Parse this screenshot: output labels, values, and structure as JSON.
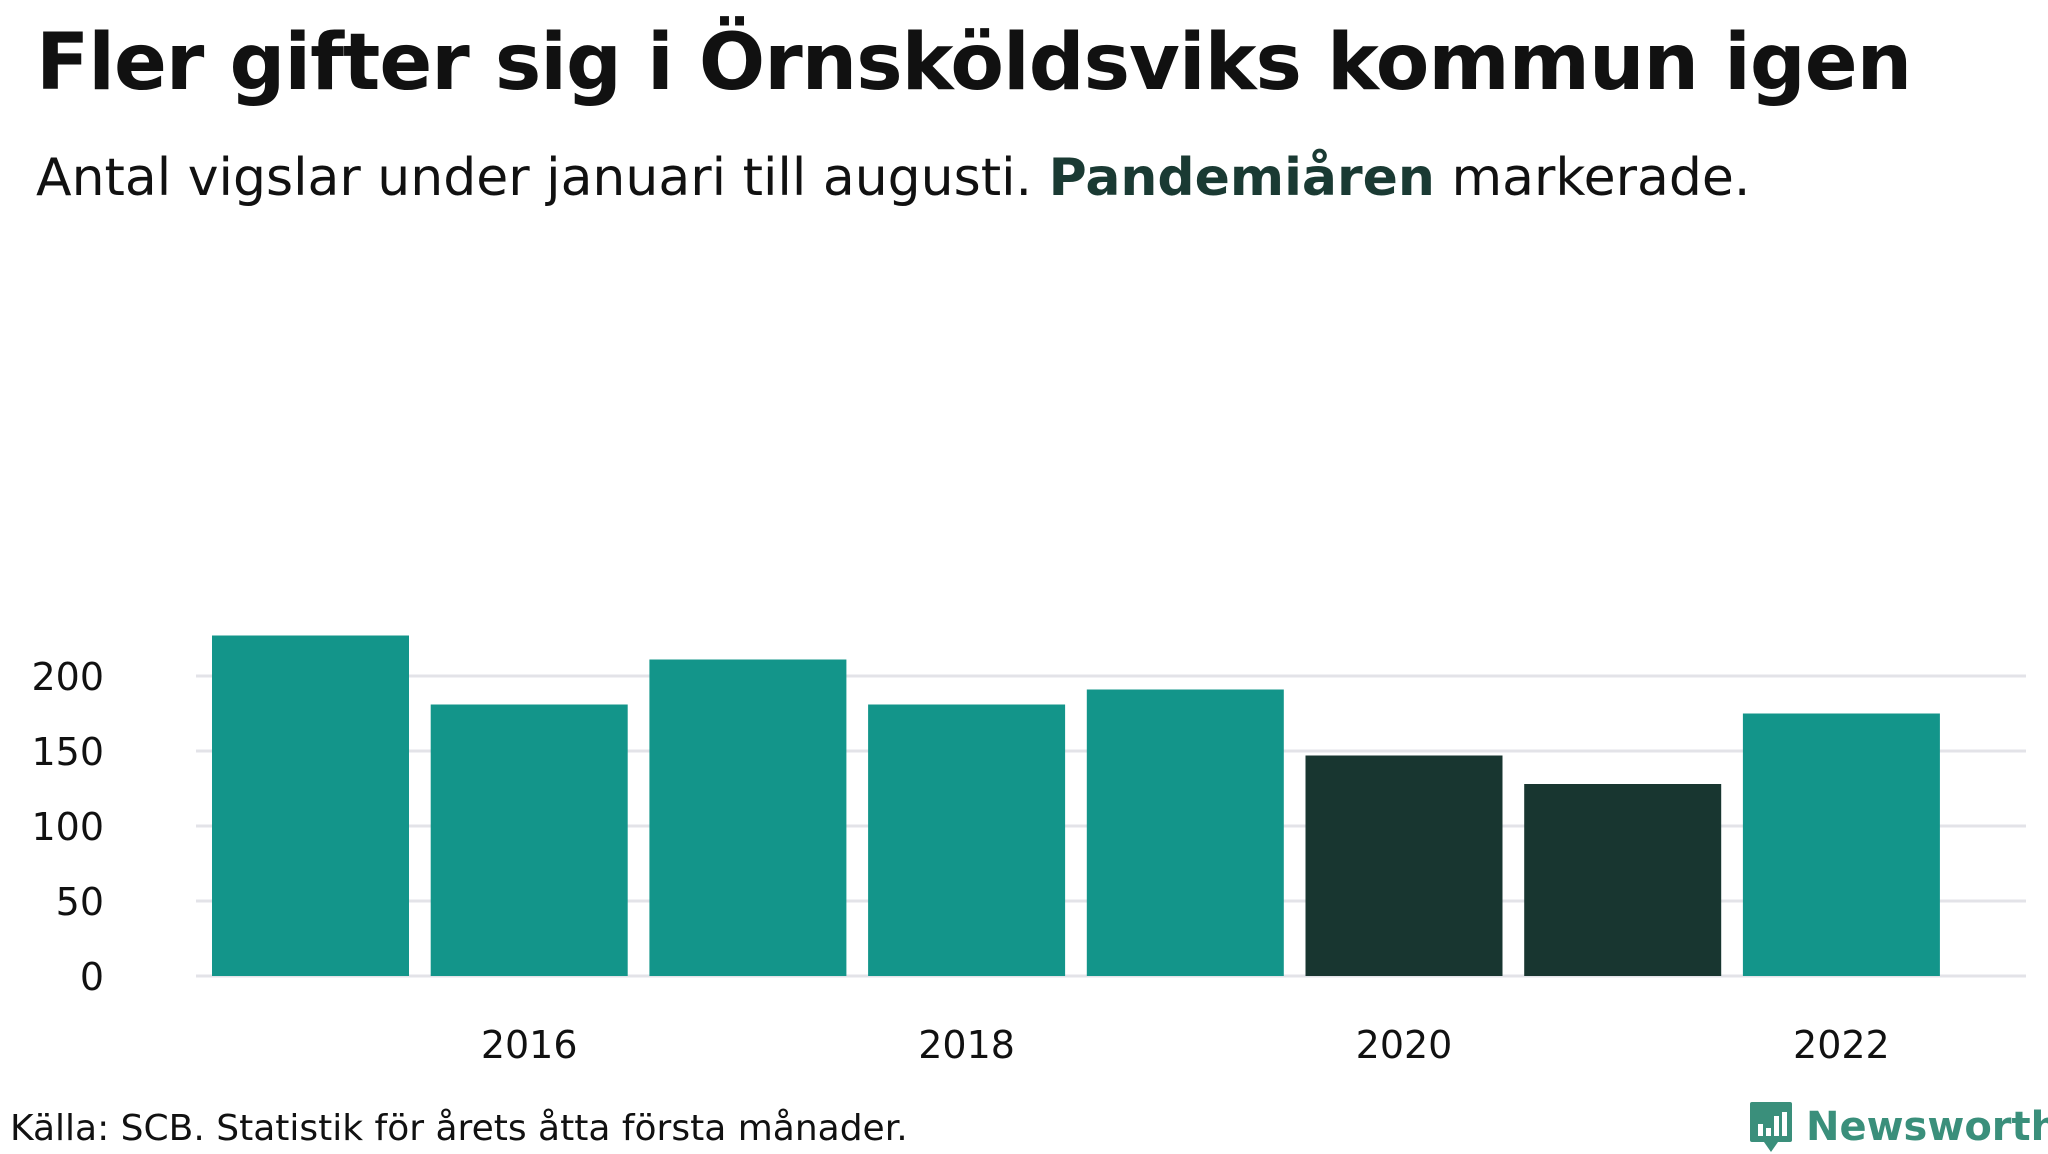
{
  "title": "Fler gifter sig i Örnsköldsviks kommun igen",
  "subtitle": {
    "before": "Antal vigslar under januari till augusti. ",
    "highlight": "Pandemiåren",
    "after": " markerade."
  },
  "source": "Källa: SCB. Statistik för årets åtta första månader.",
  "brand": "Newsworthy",
  "colors": {
    "normal": "#13958a",
    "highlight": "#183630",
    "grid": "#e3e3e8",
    "brand": "#3a8f7b"
  },
  "chart_data": {
    "type": "bar",
    "categories": [
      "2015",
      "2016",
      "2017",
      "2018",
      "2019",
      "2020",
      "2021",
      "2022"
    ],
    "values": [
      227,
      181,
      211,
      181,
      191,
      147,
      128,
      175
    ],
    "highlighted": [
      false,
      false,
      false,
      false,
      false,
      true,
      true,
      false
    ],
    "xticks": [
      "2016",
      "2018",
      "2020",
      "2022"
    ],
    "yticks": [
      0,
      50,
      100,
      150,
      200
    ],
    "ylim": [
      0,
      235
    ],
    "grid": true,
    "xlabel": "",
    "ylabel": ""
  }
}
